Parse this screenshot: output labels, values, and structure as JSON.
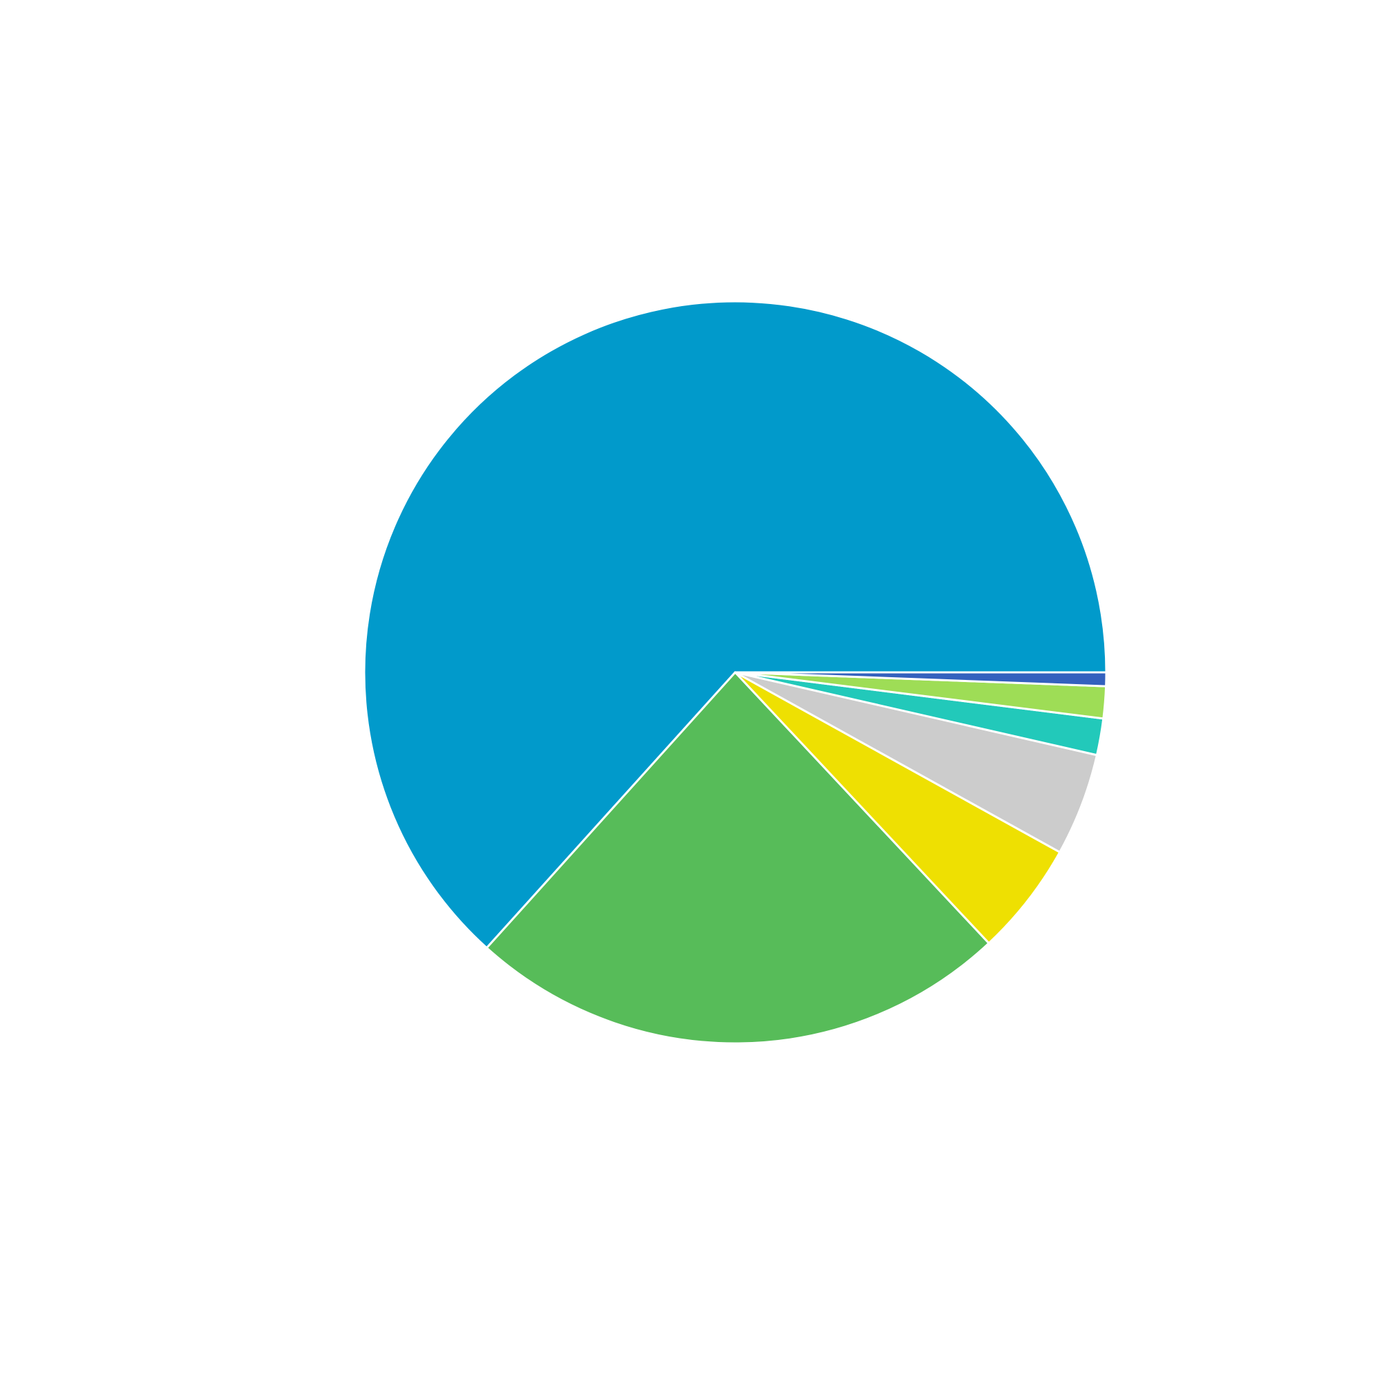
{
  "chart_data": {
    "type": "pie",
    "start_angle_deg": 0,
    "direction": "counterclockwise",
    "slices": [
      {
        "value": 63.7,
        "color": "#019ACB"
      },
      {
        "value": 23.8,
        "color": "#57BC59"
      },
      {
        "value": 5.0,
        "color": "#EEE002"
      },
      {
        "value": 4.5,
        "color": "#CCCCCC"
      },
      {
        "value": 1.6,
        "color": "#22C9BA"
      },
      {
        "value": 1.4,
        "color": "#9EDD56"
      },
      {
        "value": 0.6,
        "color": "#3361BE"
      }
    ],
    "legend": false,
    "labels": false
  }
}
